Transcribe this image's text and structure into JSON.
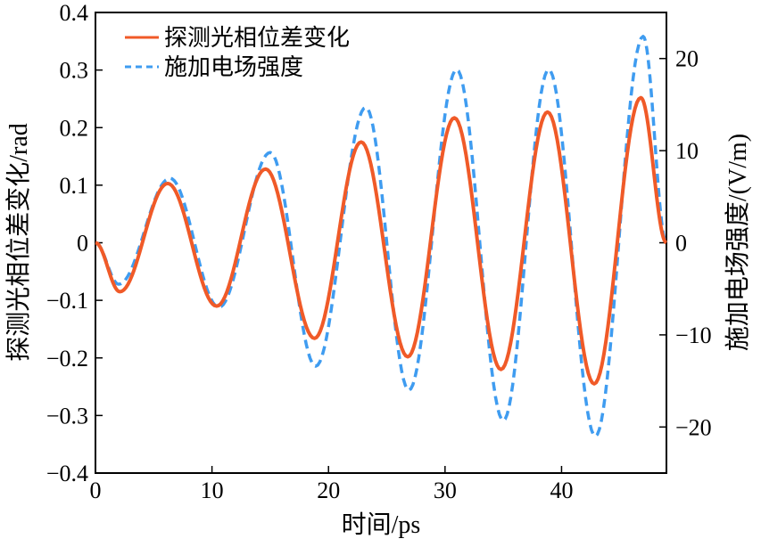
{
  "chart_data": {
    "type": "line",
    "xlabel": "时间/ps",
    "ylabel_left": "探测光相位差变化/rad",
    "ylabel_right": "施加电场强度/(V/m)",
    "xlim": [
      0,
      49
    ],
    "ylim_left": [
      -0.4,
      0.4
    ],
    "ylim_right": [
      -25,
      25
    ],
    "x_ticks": [
      "0",
      "10",
      "20",
      "30",
      "40"
    ],
    "y_ticks_left": [
      "0.4",
      "0.3",
      "0.2",
      "0.1",
      "0",
      "−0.1",
      "−0.2",
      "−0.3",
      "−0.4"
    ],
    "y_ticks_right": [
      "20",
      "10",
      "0",
      "−10",
      "−20"
    ],
    "legend_position": "top-left",
    "series": [
      {
        "name": "探测光相位差变化",
        "axis": "left",
        "color": "#f05a28",
        "style": "solid",
        "x": [
          0,
          2.1,
          6.2,
          10.4,
          14.6,
          18.8,
          22.8,
          26.8,
          30.8,
          34.8,
          38.8,
          42.8,
          46.8,
          49
        ],
        "y": [
          0,
          -0.085,
          0.103,
          -0.11,
          0.128,
          -0.166,
          0.175,
          -0.198,
          0.217,
          -0.22,
          0.227,
          -0.245,
          0.252,
          0
        ]
      },
      {
        "name": "施加电场强度",
        "axis": "right",
        "color": "#3f9cf0",
        "style": "dashed",
        "x": [
          0,
          2.0,
          6.4,
          10.6,
          15.0,
          18.9,
          23.2,
          26.9,
          31.0,
          35.0,
          38.9,
          42.9,
          47.0,
          49
        ],
        "y": [
          0,
          -4.5,
          7.0,
          -7.0,
          9.8,
          -13.4,
          14.7,
          -16.0,
          18.8,
          -19.3,
          18.8,
          -21.0,
          22.4,
          0
        ]
      }
    ]
  }
}
